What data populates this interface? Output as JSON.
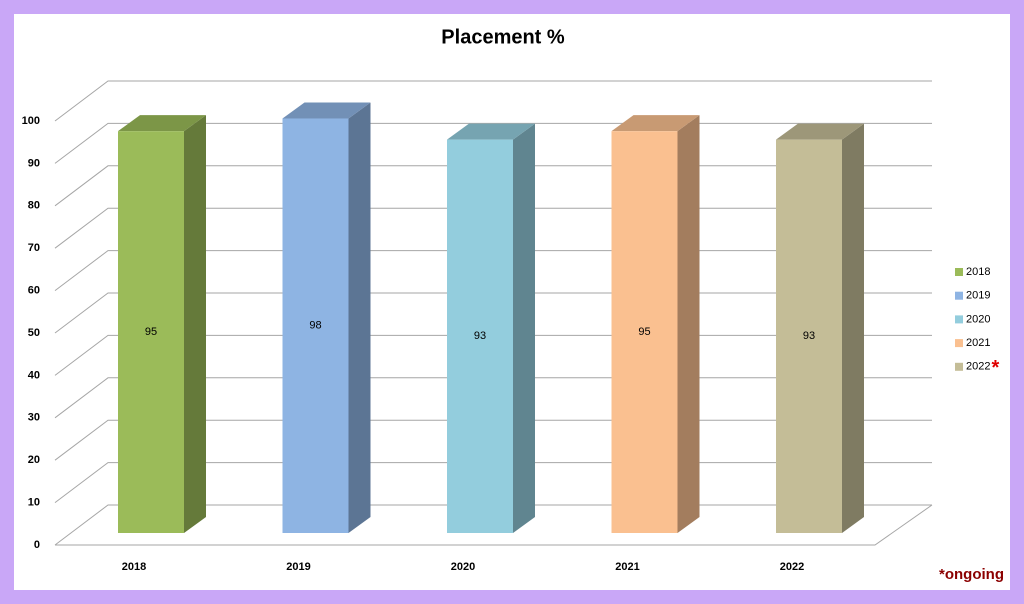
{
  "chart_data": {
    "type": "bar3d",
    "title": "Placement %",
    "categories": [
      "2018",
      "2019",
      "2020",
      "2021",
      "2022"
    ],
    "values": [
      95,
      98,
      93,
      95,
      93
    ],
    "colors": [
      "#9bbb59",
      "#8eb4e3",
      "#93cddd",
      "#fac090",
      "#c4bd97"
    ],
    "ylim": [
      0,
      100
    ],
    "yticks": [
      0,
      10,
      20,
      30,
      40,
      50,
      60,
      70,
      80,
      90,
      100
    ],
    "grid": true,
    "legend": "right",
    "legend_note_mark": "*",
    "note": "*ongoing"
  }
}
